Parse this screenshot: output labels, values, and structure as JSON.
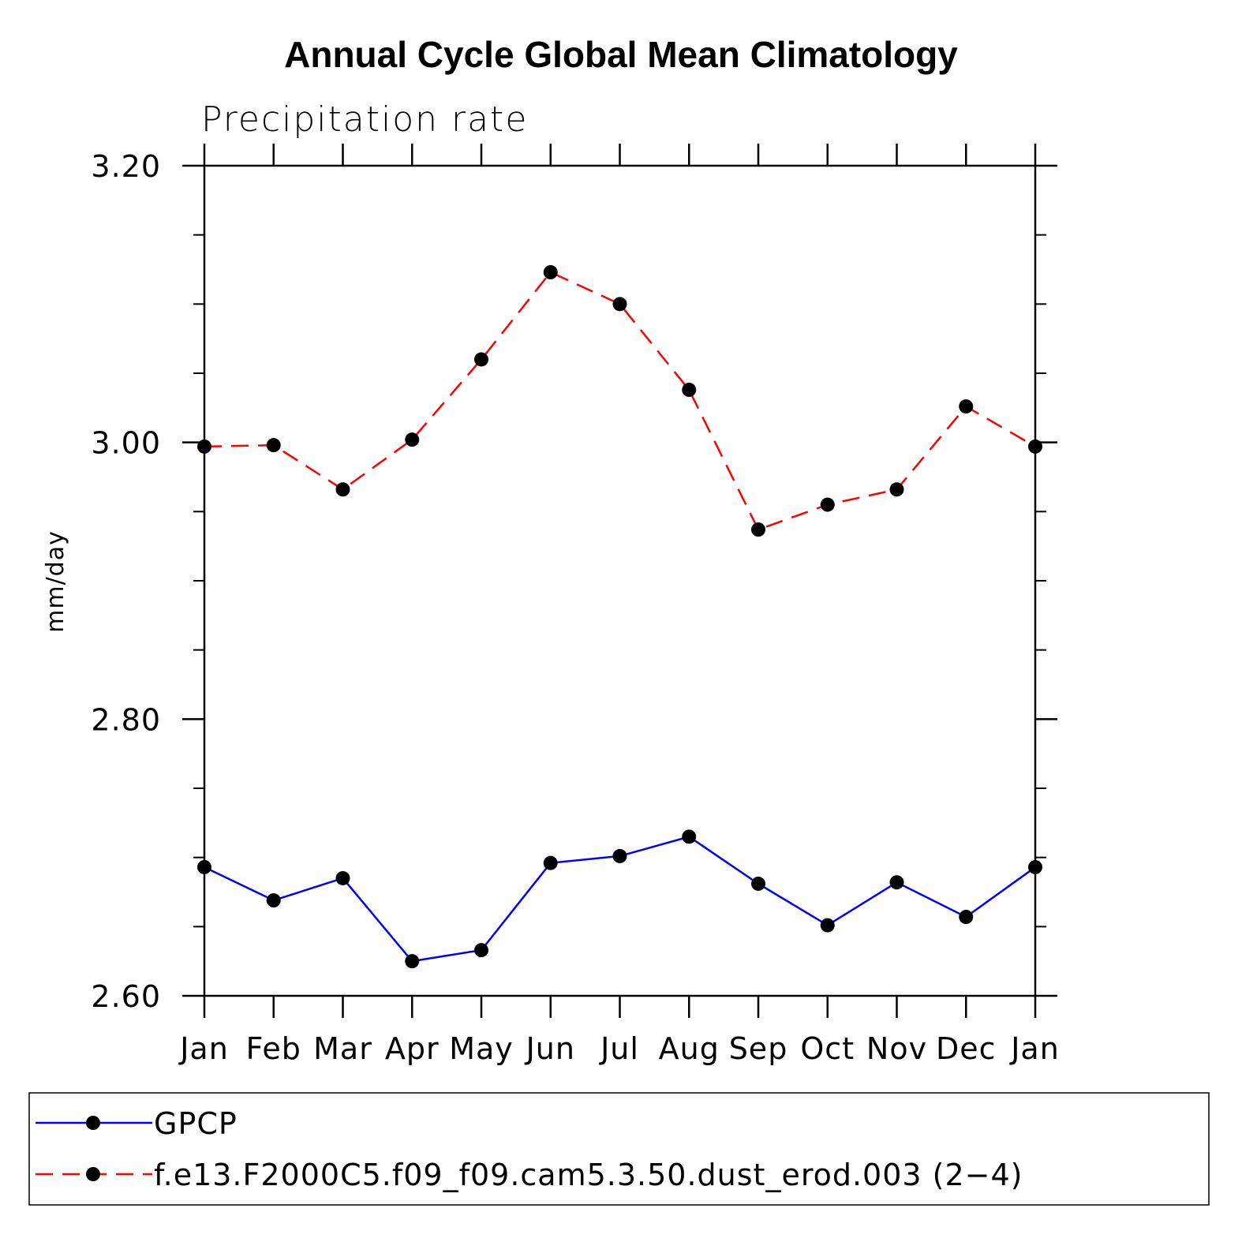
{
  "chart_data": {
    "type": "line",
    "title": "Annual Cycle Global Mean Climatology",
    "subtitle": "Precipitation rate",
    "xlabel": "",
    "ylabel": "mm/day",
    "categories": [
      "Jan",
      "Feb",
      "Mar",
      "Apr",
      "May",
      "Jun",
      "Jul",
      "Aug",
      "Sep",
      "Oct",
      "Nov",
      "Dec",
      "Jan"
    ],
    "ylim": [
      2.6,
      3.2
    ],
    "y_major_ticks": [
      2.6,
      2.8,
      3.0,
      3.2
    ],
    "y_tick_labels": [
      "2.60",
      "2.80",
      "3.00",
      "3.20"
    ],
    "y_minor_step": 0.05,
    "grid": false,
    "legend_position": "bottom",
    "series": [
      {
        "name": "GPCP",
        "color": "#0000ff",
        "dash": "solid",
        "marker": "filled-circle",
        "values": [
          2.693,
          2.669,
          2.685,
          2.625,
          2.633,
          2.696,
          2.701,
          2.715,
          2.681,
          2.651,
          2.682,
          2.657,
          2.693
        ]
      },
      {
        "name": "f.e13.F2000C5.f09_f09.cam5.3.50.dust_erod.003 (2−4)",
        "color": "#ff0000",
        "dash": "dashed",
        "marker": "filled-circle",
        "values": [
          2.997,
          2.998,
          2.966,
          3.002,
          3.06,
          3.123,
          3.1,
          3.038,
          2.937,
          2.955,
          2.966,
          3.026,
          2.997
        ]
      }
    ]
  }
}
